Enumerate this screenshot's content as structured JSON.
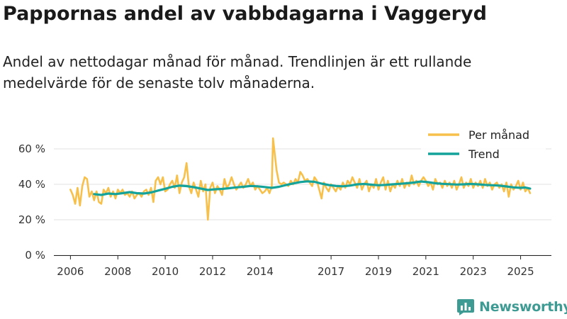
{
  "header": {
    "title": "Pappornas andel av vabbdagarna i Vaggeryd",
    "subtitle": "Andel av nettodagar månad för månad. Trendlinjen är ett rullande medelvärde för de senaste tolv månaderna."
  },
  "brand": {
    "name": "Newsworthy",
    "color": "#3e9b93",
    "icon": "bar-chart-logo-icon"
  },
  "colors": {
    "monthly": "#f7c04a",
    "trend": "#14a39a"
  },
  "chart_data": {
    "type": "line",
    "title": "Pappornas andel av vabbdagarna i Vaggeryd",
    "xlabel": "",
    "ylabel": "",
    "ylim": [
      0,
      70
    ],
    "xlim": [
      2005.3,
      2026.3
    ],
    "grid": true,
    "legend": "top-right",
    "y_ticks": [
      {
        "value": 0,
        "label": "0 %"
      },
      {
        "value": 20,
        "label": "20 %"
      },
      {
        "value": 40,
        "label": "40 %"
      },
      {
        "value": 60,
        "label": "60 %"
      }
    ],
    "x_ticks": [
      {
        "value": 2006,
        "label": "2006"
      },
      {
        "value": 2008,
        "label": "2008"
      },
      {
        "value": 2010,
        "label": "2010"
      },
      {
        "value": 2012,
        "label": "2012"
      },
      {
        "value": 2014,
        "label": "2014"
      },
      {
        "value": 2017,
        "label": "2017"
      },
      {
        "value": 2019,
        "label": "2019"
      },
      {
        "value": 2021,
        "label": "2021"
      },
      {
        "value": 2023,
        "label": "2023"
      },
      {
        "value": 2025,
        "label": "2025"
      }
    ],
    "series": [
      {
        "name": "Per månad",
        "key": "monthly",
        "points": [
          [
            2006.0,
            37
          ],
          [
            2006.1,
            34
          ],
          [
            2006.2,
            29
          ],
          [
            2006.3,
            38
          ],
          [
            2006.4,
            28
          ],
          [
            2006.5,
            39
          ],
          [
            2006.6,
            44
          ],
          [
            2006.7,
            43
          ],
          [
            2006.8,
            33
          ],
          [
            2006.9,
            36
          ],
          [
            2007.0,
            31
          ],
          [
            2007.1,
            36
          ],
          [
            2007.2,
            30
          ],
          [
            2007.3,
            29
          ],
          [
            2007.4,
            37
          ],
          [
            2007.5,
            35
          ],
          [
            2007.6,
            38
          ],
          [
            2007.7,
            33
          ],
          [
            2007.8,
            36
          ],
          [
            2007.9,
            32
          ],
          [
            2008.0,
            37
          ],
          [
            2008.1,
            35
          ],
          [
            2008.2,
            37
          ],
          [
            2008.3,
            34
          ],
          [
            2008.4,
            35
          ],
          [
            2008.5,
            33
          ],
          [
            2008.6,
            36
          ],
          [
            2008.7,
            32
          ],
          [
            2008.8,
            34
          ],
          [
            2008.9,
            35
          ],
          [
            2009.0,
            33
          ],
          [
            2009.1,
            36
          ],
          [
            2009.2,
            37
          ],
          [
            2009.3,
            34
          ],
          [
            2009.4,
            38
          ],
          [
            2009.5,
            30
          ],
          [
            2009.6,
            42
          ],
          [
            2009.7,
            44
          ],
          [
            2009.8,
            40
          ],
          [
            2009.9,
            44
          ],
          [
            2010.0,
            36
          ],
          [
            2010.1,
            37
          ],
          [
            2010.2,
            40
          ],
          [
            2010.3,
            42
          ],
          [
            2010.4,
            38
          ],
          [
            2010.5,
            45
          ],
          [
            2010.6,
            35
          ],
          [
            2010.7,
            41
          ],
          [
            2010.8,
            44
          ],
          [
            2010.9,
            52
          ],
          [
            2011.0,
            39
          ],
          [
            2011.1,
            35
          ],
          [
            2011.2,
            41
          ],
          [
            2011.3,
            37
          ],
          [
            2011.4,
            33
          ],
          [
            2011.5,
            42
          ],
          [
            2011.6,
            36
          ],
          [
            2011.7,
            40
          ],
          [
            2011.8,
            20
          ],
          [
            2011.9,
            38
          ],
          [
            2012.0,
            41
          ],
          [
            2012.1,
            35
          ],
          [
            2012.2,
            39
          ],
          [
            2012.3,
            37
          ],
          [
            2012.4,
            34
          ],
          [
            2012.5,
            43
          ],
          [
            2012.6,
            38
          ],
          [
            2012.7,
            40
          ],
          [
            2012.8,
            44
          ],
          [
            2012.9,
            40
          ],
          [
            2013.0,
            37
          ],
          [
            2013.1,
            39
          ],
          [
            2013.2,
            41
          ],
          [
            2013.3,
            38
          ],
          [
            2013.4,
            40
          ],
          [
            2013.5,
            43
          ],
          [
            2013.6,
            39
          ],
          [
            2013.7,
            41
          ],
          [
            2013.8,
            37
          ],
          [
            2013.9,
            39
          ],
          [
            2014.0,
            37
          ],
          [
            2014.1,
            35
          ],
          [
            2014.2,
            36
          ],
          [
            2014.3,
            38
          ],
          [
            2014.4,
            35
          ],
          [
            2014.5,
            39
          ],
          [
            2014.55,
            66
          ],
          [
            2014.7,
            48
          ],
          [
            2014.8,
            41
          ],
          [
            2014.9,
            40
          ],
          [
            2015.0,
            41
          ],
          [
            2015.1,
            40
          ],
          [
            2015.2,
            39
          ],
          [
            2015.3,
            42
          ],
          [
            2015.4,
            40
          ],
          [
            2015.5,
            43
          ],
          [
            2015.6,
            41
          ],
          [
            2015.7,
            47
          ],
          [
            2015.8,
            45
          ],
          [
            2015.9,
            42
          ],
          [
            2016.0,
            43
          ],
          [
            2016.1,
            41
          ],
          [
            2016.2,
            39
          ],
          [
            2016.3,
            44
          ],
          [
            2016.4,
            42
          ],
          [
            2016.5,
            37
          ],
          [
            2016.6,
            32
          ],
          [
            2016.7,
            41
          ],
          [
            2016.8,
            38
          ],
          [
            2016.9,
            36
          ],
          [
            2017.0,
            40
          ],
          [
            2017.1,
            38
          ],
          [
            2017.2,
            36
          ],
          [
            2017.3,
            39
          ],
          [
            2017.4,
            37
          ],
          [
            2017.5,
            41
          ],
          [
            2017.6,
            38
          ],
          [
            2017.7,
            42
          ],
          [
            2017.8,
            40
          ],
          [
            2017.9,
            44
          ],
          [
            2018.0,
            41
          ],
          [
            2018.1,
            38
          ],
          [
            2018.2,
            43
          ],
          [
            2018.3,
            37
          ],
          [
            2018.4,
            40
          ],
          [
            2018.5,
            42
          ],
          [
            2018.6,
            36
          ],
          [
            2018.7,
            40
          ],
          [
            2018.8,
            38
          ],
          [
            2018.9,
            43
          ],
          [
            2019.0,
            37
          ],
          [
            2019.1,
            41
          ],
          [
            2019.2,
            44
          ],
          [
            2019.3,
            37
          ],
          [
            2019.4,
            42
          ],
          [
            2019.5,
            36
          ],
          [
            2019.6,
            40
          ],
          [
            2019.7,
            38
          ],
          [
            2019.8,
            42
          ],
          [
            2019.9,
            39
          ],
          [
            2020.0,
            43
          ],
          [
            2020.1,
            38
          ],
          [
            2020.2,
            41
          ],
          [
            2020.3,
            39
          ],
          [
            2020.4,
            45
          ],
          [
            2020.5,
            40
          ],
          [
            2020.6,
            42
          ],
          [
            2020.7,
            39
          ],
          [
            2020.8,
            42
          ],
          [
            2020.9,
            44
          ],
          [
            2021.0,
            42
          ],
          [
            2021.1,
            39
          ],
          [
            2021.2,
            41
          ],
          [
            2021.3,
            37
          ],
          [
            2021.4,
            43
          ],
          [
            2021.5,
            40
          ],
          [
            2021.6,
            41
          ],
          [
            2021.7,
            38
          ],
          [
            2021.8,
            42
          ],
          [
            2021.9,
            39
          ],
          [
            2022.0,
            41
          ],
          [
            2022.1,
            38
          ],
          [
            2022.2,
            42
          ],
          [
            2022.3,
            37
          ],
          [
            2022.4,
            40
          ],
          [
            2022.5,
            44
          ],
          [
            2022.6,
            38
          ],
          [
            2022.7,
            41
          ],
          [
            2022.8,
            39
          ],
          [
            2022.9,
            43
          ],
          [
            2023.0,
            38
          ],
          [
            2023.1,
            41
          ],
          [
            2023.2,
            39
          ],
          [
            2023.3,
            42
          ],
          [
            2023.4,
            38
          ],
          [
            2023.5,
            43
          ],
          [
            2023.6,
            39
          ],
          [
            2023.7,
            41
          ],
          [
            2023.8,
            37
          ],
          [
            2023.9,
            40
          ],
          [
            2024.0,
            41
          ],
          [
            2024.1,
            38
          ],
          [
            2024.2,
            40
          ],
          [
            2024.3,
            36
          ],
          [
            2024.4,
            41
          ],
          [
            2024.5,
            33
          ],
          [
            2024.6,
            40
          ],
          [
            2024.7,
            37
          ],
          [
            2024.8,
            39
          ],
          [
            2024.9,
            42
          ],
          [
            2025.0,
            37
          ],
          [
            2025.1,
            41
          ],
          [
            2025.2,
            36
          ],
          [
            2025.3,
            38
          ],
          [
            2025.4,
            35
          ]
        ]
      },
      {
        "name": "Trend",
        "key": "trend",
        "points": [
          [
            2007.0,
            34.5
          ],
          [
            2007.3,
            34.0
          ],
          [
            2007.6,
            34.8
          ],
          [
            2007.9,
            34.5
          ],
          [
            2008.2,
            35.0
          ],
          [
            2008.5,
            35.6
          ],
          [
            2008.8,
            35.0
          ],
          [
            2009.1,
            34.8
          ],
          [
            2009.4,
            35.4
          ],
          [
            2009.7,
            36.5
          ],
          [
            2010.0,
            37.5
          ],
          [
            2010.3,
            38.6
          ],
          [
            2010.6,
            39.3
          ],
          [
            2010.9,
            39.0
          ],
          [
            2011.2,
            38.4
          ],
          [
            2011.5,
            37.6
          ],
          [
            2011.8,
            36.8
          ],
          [
            2012.1,
            37.2
          ],
          [
            2012.4,
            37.4
          ],
          [
            2012.7,
            37.8
          ],
          [
            2013.0,
            38.3
          ],
          [
            2013.3,
            38.6
          ],
          [
            2013.6,
            39.1
          ],
          [
            2013.9,
            38.9
          ],
          [
            2014.2,
            38.5
          ],
          [
            2014.5,
            38.0
          ],
          [
            2014.8,
            38.6
          ],
          [
            2015.1,
            39.6
          ],
          [
            2015.4,
            40.5
          ],
          [
            2015.7,
            41.3
          ],
          [
            2016.0,
            41.7
          ],
          [
            2016.3,
            41.4
          ],
          [
            2016.6,
            40.4
          ],
          [
            2016.9,
            39.6
          ],
          [
            2017.2,
            39.1
          ],
          [
            2017.5,
            38.9
          ],
          [
            2017.8,
            39.3
          ],
          [
            2018.1,
            40.0
          ],
          [
            2018.4,
            40.2
          ],
          [
            2018.7,
            39.8
          ],
          [
            2019.0,
            39.5
          ],
          [
            2019.3,
            39.7
          ],
          [
            2019.6,
            40.0
          ],
          [
            2019.9,
            40.3
          ],
          [
            2020.2,
            40.6
          ],
          [
            2020.5,
            41.0
          ],
          [
            2020.8,
            41.6
          ],
          [
            2021.1,
            41.2
          ],
          [
            2021.4,
            40.6
          ],
          [
            2021.7,
            40.3
          ],
          [
            2022.0,
            40.1
          ],
          [
            2022.3,
            39.9
          ],
          [
            2022.6,
            40.0
          ],
          [
            2022.9,
            40.2
          ],
          [
            2023.2,
            40.0
          ],
          [
            2023.5,
            39.7
          ],
          [
            2023.8,
            39.5
          ],
          [
            2024.1,
            39.3
          ],
          [
            2024.4,
            38.8
          ],
          [
            2024.7,
            38.3
          ],
          [
            2025.0,
            38.0
          ],
          [
            2025.2,
            38.2
          ],
          [
            2025.4,
            37.6
          ]
        ]
      }
    ]
  }
}
